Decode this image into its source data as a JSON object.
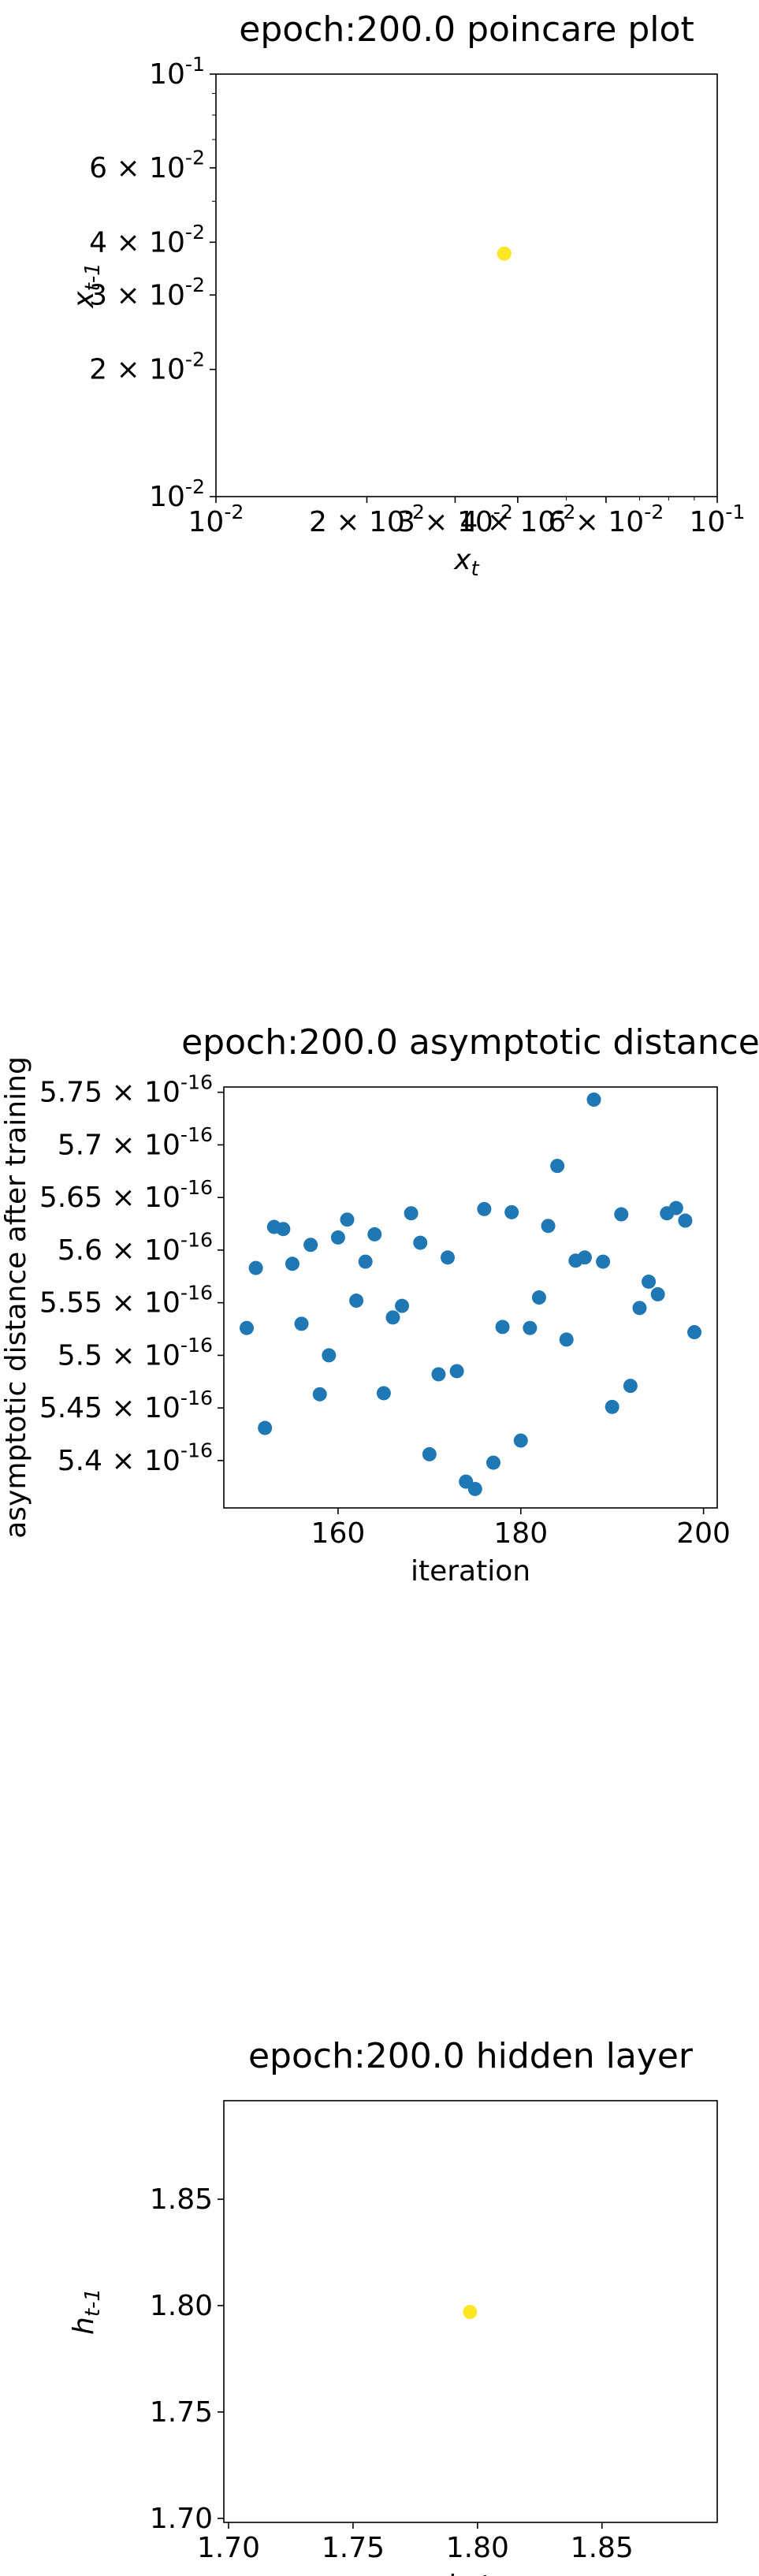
{
  "chart_data": [
    {
      "type": "scatter",
      "title": "epoch:200.0 poincare plot",
      "xlabel": "x",
      "xlabel_sub": "t",
      "ylabel": "x",
      "ylabel_sub": "t-1",
      "xscale": "log",
      "yscale": "log",
      "xlim": [
        0.01,
        0.1
      ],
      "ylim": [
        0.01,
        0.1
      ],
      "x_ticks": [
        {
          "value": 0.01,
          "mant": "10",
          "exp": "-2",
          "coef": ""
        },
        {
          "value": 0.02,
          "mant": "10",
          "exp": "-2",
          "coef": "2 × "
        },
        {
          "value": 0.03,
          "mant": "10",
          "exp": "-2",
          "coef": "3 × "
        },
        {
          "value": 0.04,
          "mant": "10",
          "exp": "-2",
          "coef": "4 × "
        },
        {
          "value": 0.06,
          "mant": "10",
          "exp": "-2",
          "coef": "6 × "
        },
        {
          "value": 0.1,
          "mant": "10",
          "exp": "-1",
          "coef": ""
        }
      ],
      "y_ticks": [
        {
          "value": 0.01,
          "mant": "10",
          "exp": "-2",
          "coef": ""
        },
        {
          "value": 0.02,
          "mant": "10",
          "exp": "-2",
          "coef": "2 × "
        },
        {
          "value": 0.03,
          "mant": "10",
          "exp": "-2",
          "coef": "3 × "
        },
        {
          "value": 0.04,
          "mant": "10",
          "exp": "-2",
          "coef": "4 × "
        },
        {
          "value": 0.06,
          "mant": "10",
          "exp": "-2",
          "coef": "6 × "
        },
        {
          "value": 0.1,
          "mant": "10",
          "exp": "-1",
          "coef": ""
        }
      ],
      "points": [
        {
          "x": 0.0376,
          "y": 0.0376
        }
      ],
      "marker_color": "#fde725",
      "grid": false
    },
    {
      "type": "scatter",
      "title": "epoch:200.0 asymptotic distance",
      "xlabel": "iteration",
      "ylabel": "asymptotic distance after training",
      "xlim": [
        147.5,
        201.5
      ],
      "ylim": [
        5.355e-16,
        5.755e-16
      ],
      "x_ticks": [
        {
          "value": 160,
          "label": "160"
        },
        {
          "value": 180,
          "label": "180"
        },
        {
          "value": 200,
          "label": "200"
        }
      ],
      "y_ticks": [
        {
          "value": 5.4e-16,
          "coef": "5.4 × ",
          "mant": "10",
          "exp": "-16"
        },
        {
          "value": 5.45e-16,
          "coef": "5.45 × ",
          "mant": "10",
          "exp": "-16"
        },
        {
          "value": 5.5e-16,
          "coef": "5.5 × ",
          "mant": "10",
          "exp": "-16"
        },
        {
          "value": 5.55e-16,
          "coef": "5.55 × ",
          "mant": "10",
          "exp": "-16"
        },
        {
          "value": 5.6e-16,
          "coef": "5.6 × ",
          "mant": "10",
          "exp": "-16"
        },
        {
          "value": 5.65e-16,
          "coef": "5.65 × ",
          "mant": "10",
          "exp": "-16"
        },
        {
          "value": 5.7e-16,
          "coef": "5.7 × ",
          "mant": "10",
          "exp": "-16"
        },
        {
          "value": 5.75e-16,
          "coef": "5.75 × ",
          "mant": "10",
          "exp": "-16"
        }
      ],
      "x": [
        150,
        151,
        152,
        153,
        154,
        155,
        156,
        157,
        158,
        159,
        160,
        161,
        162,
        163,
        164,
        165,
        166,
        167,
        168,
        169,
        170,
        171,
        172,
        173,
        174,
        175,
        176,
        177,
        178,
        179,
        180,
        181,
        182,
        183,
        184,
        185,
        186,
        187,
        188,
        189,
        190,
        191,
        192,
        193,
        194,
        195,
        196,
        197,
        198,
        199
      ],
      "y": [
        5.526e-16,
        5.583e-16,
        5.431e-16,
        5.622e-16,
        5.62e-16,
        5.587e-16,
        5.53e-16,
        5.605e-16,
        5.463e-16,
        5.5e-16,
        5.612e-16,
        5.629e-16,
        5.552e-16,
        5.589e-16,
        5.615e-16,
        5.464e-16,
        5.536e-16,
        5.547e-16,
        5.635e-16,
        5.607e-16,
        5.406e-16,
        5.482e-16,
        5.593e-16,
        5.485e-16,
        5.38e-16,
        5.373e-16,
        5.639e-16,
        5.398e-16,
        5.527e-16,
        5.636e-16,
        5.419e-16,
        5.526e-16,
        5.555e-16,
        5.623e-16,
        5.68e-16,
        5.515e-16,
        5.59e-16,
        5.593e-16,
        5.743e-16,
        5.589e-16,
        5.451e-16,
        5.634e-16,
        5.471e-16,
        5.545e-16,
        5.57e-16,
        5.558e-16,
        5.635e-16,
        5.64e-16,
        5.628e-16,
        5.522e-16
      ],
      "marker_color": "#1f77b4",
      "grid": false
    },
    {
      "type": "scatter",
      "title": "epoch:200.0 hidden layer",
      "xlabel": "h_t",
      "ylabel": "h",
      "ylabel_sub": "t-1",
      "xlim": [
        1.6981,
        1.8963
      ],
      "ylim": [
        1.6981,
        1.8963
      ],
      "x_ticks": [
        {
          "value": 1.7,
          "label": "1.70"
        },
        {
          "value": 1.75,
          "label": "1.75"
        },
        {
          "value": 1.8,
          "label": "1.80"
        },
        {
          "value": 1.85,
          "label": "1.85"
        }
      ],
      "y_ticks": [
        {
          "value": 1.7,
          "label": "1.70"
        },
        {
          "value": 1.75,
          "label": "1.75"
        },
        {
          "value": 1.8,
          "label": "1.80"
        },
        {
          "value": 1.85,
          "label": "1.85"
        }
      ],
      "points": [
        {
          "x": 1.797,
          "y": 1.797
        }
      ],
      "marker_color": "#fde725",
      "grid": false
    }
  ]
}
